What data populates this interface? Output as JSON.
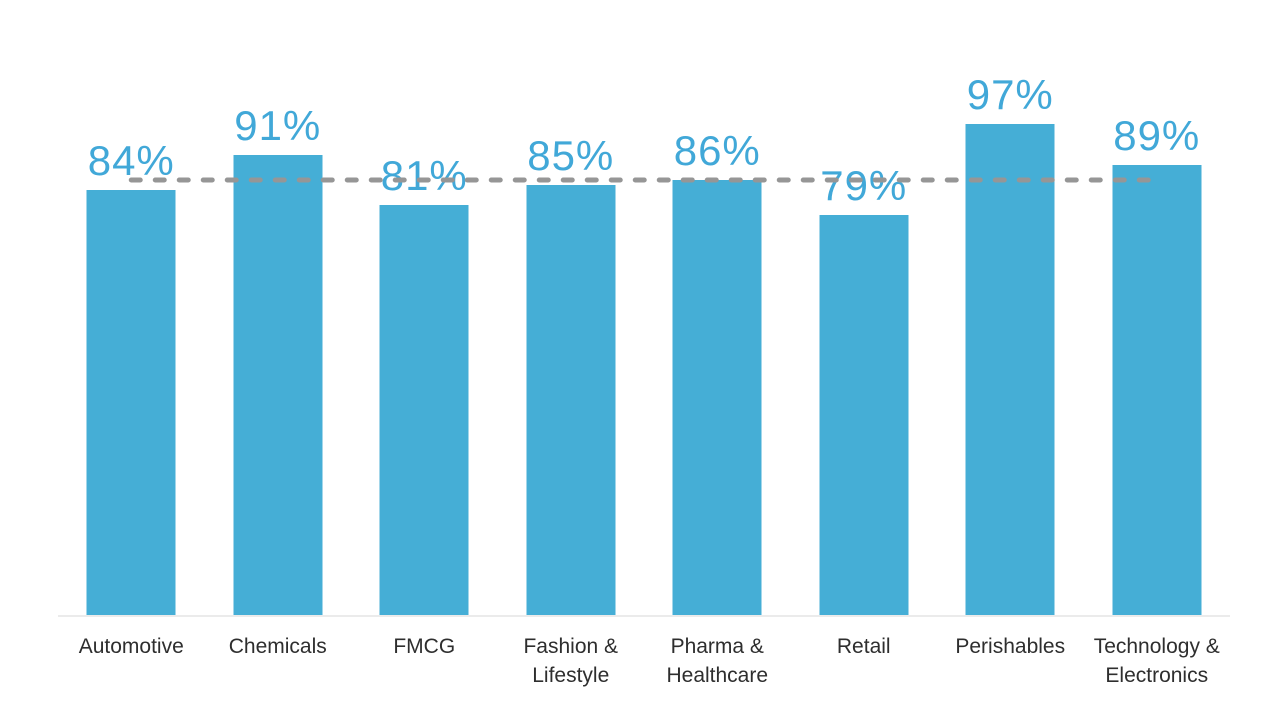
{
  "chart_data": {
    "type": "bar",
    "categories": [
      "Automotive",
      "Chemicals",
      "FMCG",
      "Fashion & Lifestyle",
      "Pharma & Healthcare",
      "Retail",
      "Perishables",
      "Technology & Electronics"
    ],
    "values": [
      84,
      91,
      81,
      85,
      86,
      79,
      97,
      89
    ],
    "value_labels": [
      "84%",
      "91%",
      "81%",
      "85%",
      "86%",
      "79%",
      "97%",
      "89%"
    ],
    "unit": "%",
    "title": "",
    "xlabel": "",
    "ylabel": "",
    "ylim": [
      0,
      100
    ],
    "grid": false,
    "legend": false,
    "reference_line": {
      "value": 86,
      "style": "dashed",
      "extent": "first-bar-center-to-last-bar-center"
    },
    "colors": {
      "bar": "#45aed6",
      "value_label": "#41a8d8",
      "category_label": "#2e2e2e",
      "reference_line": "#969696",
      "axis_line": "#ebebeb",
      "background": "#ffffff"
    }
  }
}
